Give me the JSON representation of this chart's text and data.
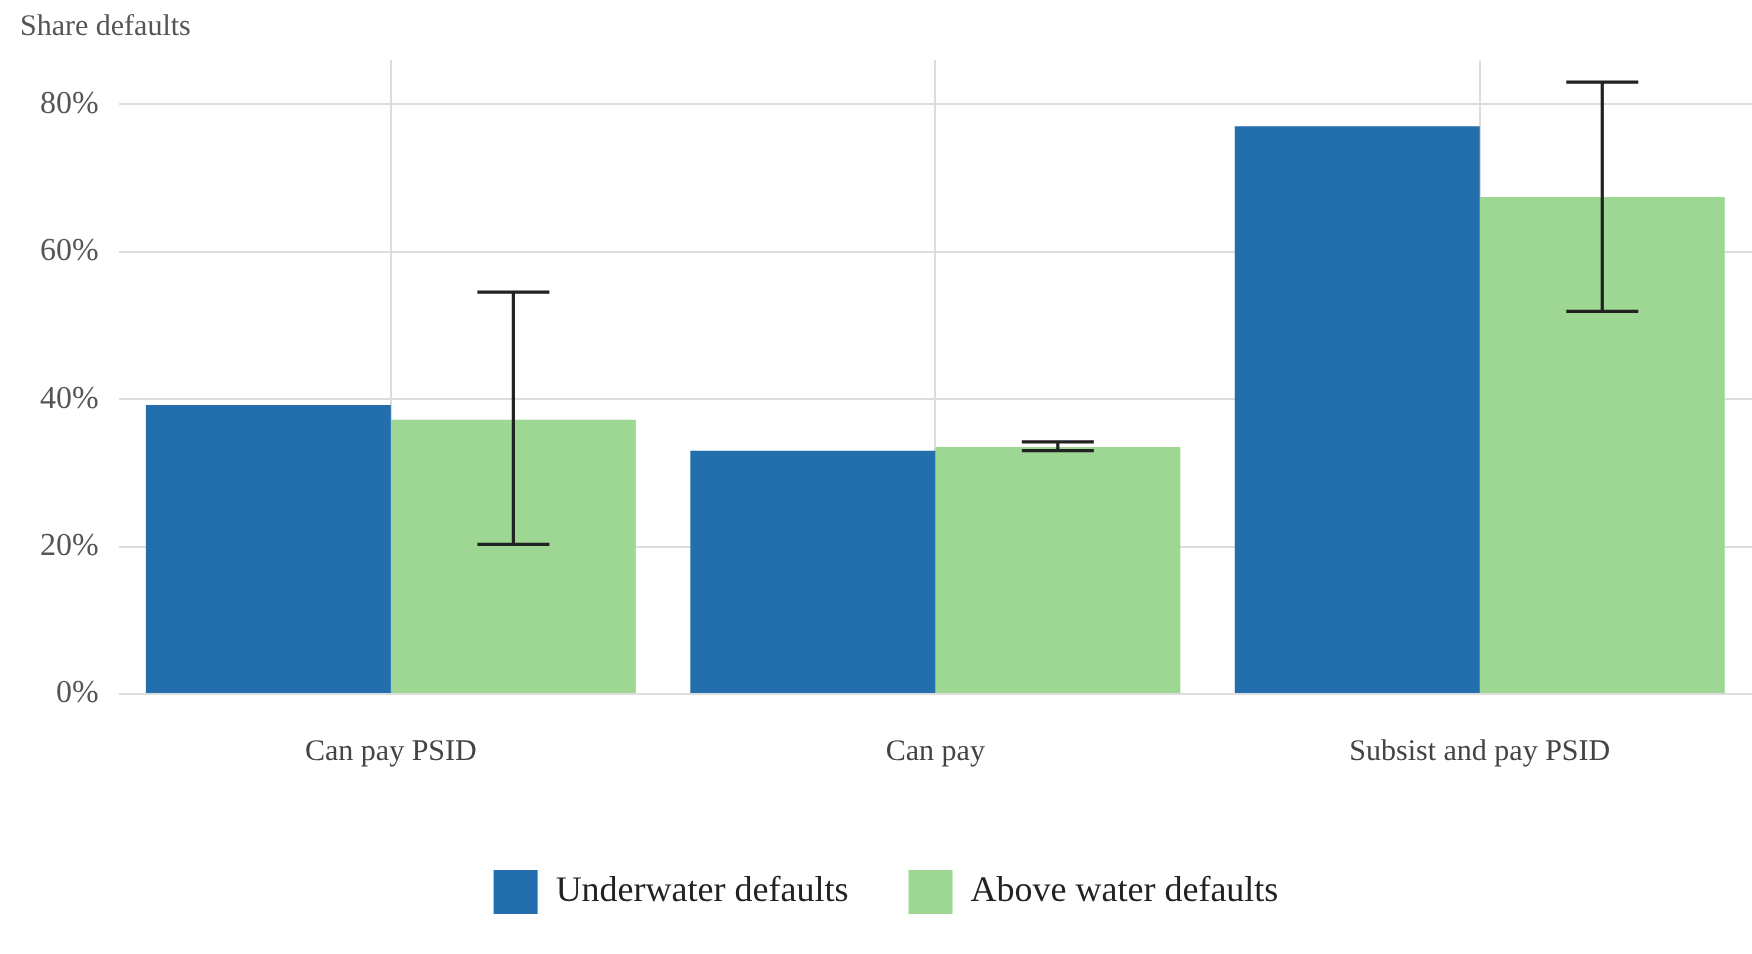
{
  "chart_data": {
    "type": "bar",
    "ylabel": "Share defaults",
    "categories": [
      "Can pay PSID",
      "Can pay",
      "Subsist and pay PSID"
    ],
    "series": [
      {
        "name": "Underwater defaults",
        "color": "#236ead",
        "values": [
          39.2,
          33.0,
          77.0
        ]
      },
      {
        "name": "Above water defaults",
        "color": "#9dd793",
        "values": [
          37.2,
          33.5,
          67.4
        ],
        "errors": [
          [
            20.3,
            54.5
          ],
          [
            33.0,
            34.2
          ],
          [
            51.9,
            83.0
          ]
        ]
      }
    ],
    "ylim": [
      0,
      86
    ],
    "yticks": [
      {
        "value": 0,
        "label": "0%"
      },
      {
        "value": 20,
        "label": "20%"
      },
      {
        "value": 40,
        "label": "40%"
      },
      {
        "value": 60,
        "label": "60%"
      },
      {
        "value": 80,
        "label": "80%"
      }
    ],
    "grid": true,
    "legend": "bottom"
  }
}
